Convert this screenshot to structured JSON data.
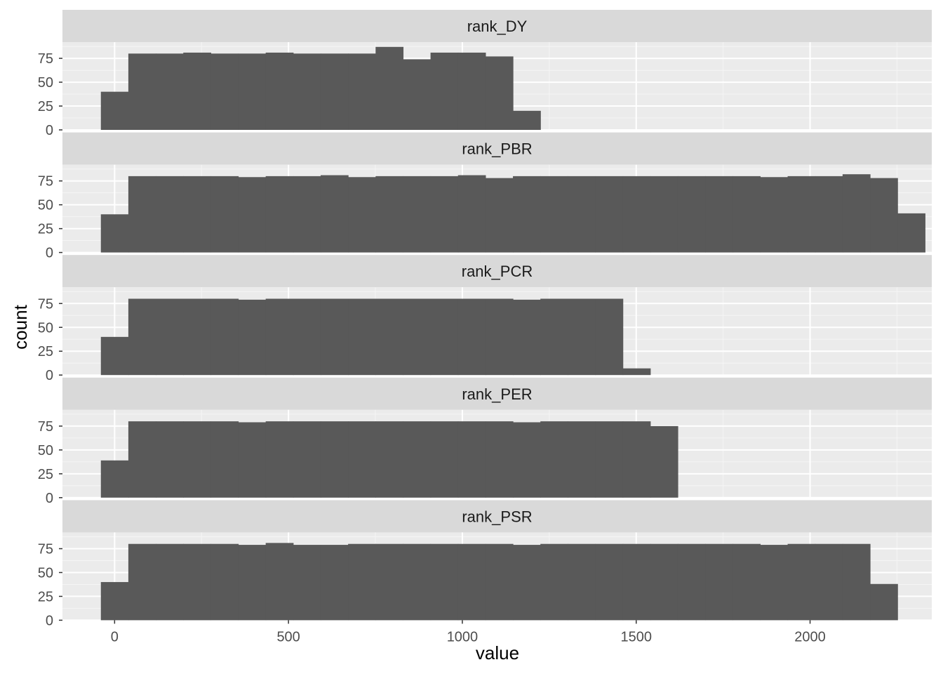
{
  "chart_data": {
    "type": "bar",
    "subtype": "faceted histogram",
    "xlabel": "value",
    "ylabel": "count",
    "xlim": [
      -150,
      2350
    ],
    "ylim": [
      0,
      92
    ],
    "x_ticks": [
      0,
      500,
      1000,
      1500,
      2000
    ],
    "y_ticks": [
      0,
      25,
      50,
      75
    ],
    "bin_width": 79,
    "bin_start": -39.5,
    "grid": true,
    "colors": {
      "bar": "#595959",
      "panel_background": "#ebebeb",
      "strip_background": "#d9d9d9",
      "grid_major": "#ffffff",
      "grid_minor": "#f5f5f5"
    },
    "panels": [
      {
        "name": "rank_DY",
        "values": [
          40,
          80,
          80,
          81,
          80,
          80,
          81,
          80,
          80,
          80,
          87,
          74,
          81,
          81,
          77,
          20
        ]
      },
      {
        "name": "rank_PBR",
        "values": [
          40,
          80,
          80,
          80,
          80,
          79,
          80,
          80,
          81,
          79,
          80,
          80,
          80,
          81,
          78,
          80,
          80,
          80,
          80,
          80,
          80,
          80,
          80,
          80,
          79,
          80,
          80,
          82,
          78,
          41
        ]
      },
      {
        "name": "rank_PCR",
        "values": [
          40,
          80,
          80,
          80,
          80,
          79,
          80,
          80,
          80,
          80,
          80,
          80,
          80,
          80,
          80,
          79,
          80,
          80,
          80,
          7
        ]
      },
      {
        "name": "rank_PER",
        "values": [
          39,
          80,
          80,
          80,
          80,
          79,
          80,
          80,
          80,
          80,
          80,
          80,
          80,
          80,
          80,
          79,
          80,
          80,
          80,
          80,
          75
        ]
      },
      {
        "name": "rank_PSR",
        "values": [
          40,
          80,
          80,
          80,
          80,
          79,
          81,
          79,
          79,
          80,
          80,
          80,
          80,
          80,
          80,
          79,
          80,
          80,
          80,
          80,
          80,
          80,
          80,
          80,
          79,
          80,
          80,
          80,
          38
        ]
      }
    ]
  }
}
